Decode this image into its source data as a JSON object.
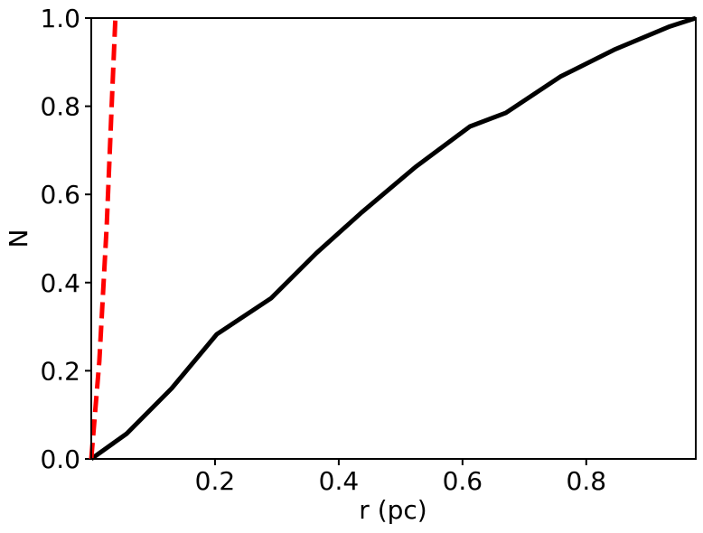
{
  "chart_data": {
    "type": "line",
    "x_label": "r (pc)",
    "y_label": "N",
    "xlim": [
      0,
      0.977
    ],
    "ylim": [
      0,
      1
    ],
    "xticks": [
      0.2,
      0.4,
      0.6,
      0.8
    ],
    "yticks": [
      {
        "value": 0,
        "label": "0.0"
      },
      0.2,
      0.4,
      0.6,
      0.8,
      {
        "value": 1,
        "label": "1.0"
      }
    ],
    "series": [
      {
        "color": "#000000",
        "dash": false,
        "x": [
          0,
          0.057,
          0.13,
          0.203,
          0.291,
          0.364,
          0.437,
          0.524,
          0.612,
          0.67,
          0.758,
          0.845,
          0.933,
          0.977
        ],
        "values": [
          0,
          0.057,
          0.16,
          0.283,
          0.365,
          0.467,
          0.559,
          0.662,
          0.754,
          0.785,
          0.867,
          0.928,
          0.98,
          1.0
        ]
      },
      {
        "color": "#ff0000",
        "dash": true,
        "x": [
          0,
          0.013,
          0.025,
          0.034,
          0.039
        ],
        "values": [
          0,
          0.221,
          0.529,
          0.836,
          1.0
        ]
      }
    ]
  }
}
